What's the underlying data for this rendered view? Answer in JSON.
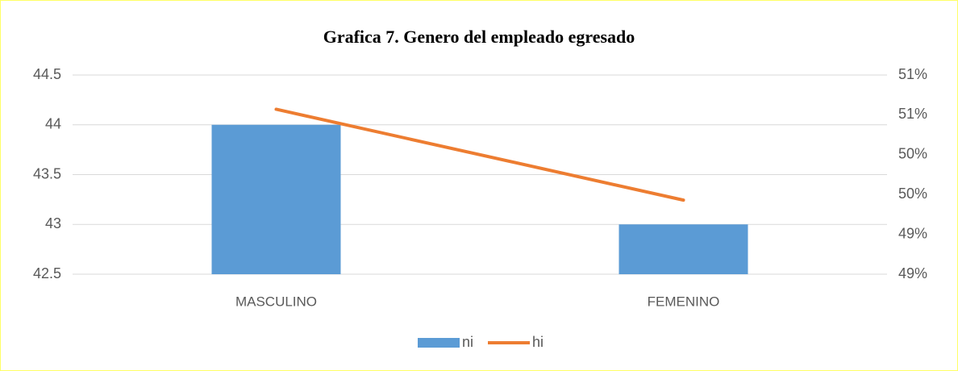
{
  "chart_data": {
    "type": "bar_line",
    "title": "Grafica 7. Genero del empleado egresado",
    "categories": [
      "MASCULINO",
      "FEMENINO"
    ],
    "series": [
      {
        "name": "ni",
        "type": "bar",
        "color": "#5b9bd5",
        "values": [
          44,
          43
        ]
      },
      {
        "name": "hi",
        "type": "line",
        "color": "#ed7d31",
        "axis": "y2",
        "values": [
          50.57,
          49.43
        ]
      }
    ],
    "ylim": [
      42.5,
      44.5
    ],
    "yticks": [
      42.5,
      43,
      43.5,
      44,
      44.5
    ],
    "y2lim": [
      48.5,
      51
    ],
    "y2ticks": [
      {
        "value": 48.5,
        "label": "49%"
      },
      {
        "value": 49,
        "label": "49%"
      },
      {
        "value": 49.5,
        "label": "50%"
      },
      {
        "value": 50,
        "label": "50%"
      },
      {
        "value": 50.5,
        "label": "51%"
      },
      {
        "value": 51,
        "label": "51%"
      }
    ],
    "grid": true,
    "legend": "bottom"
  }
}
